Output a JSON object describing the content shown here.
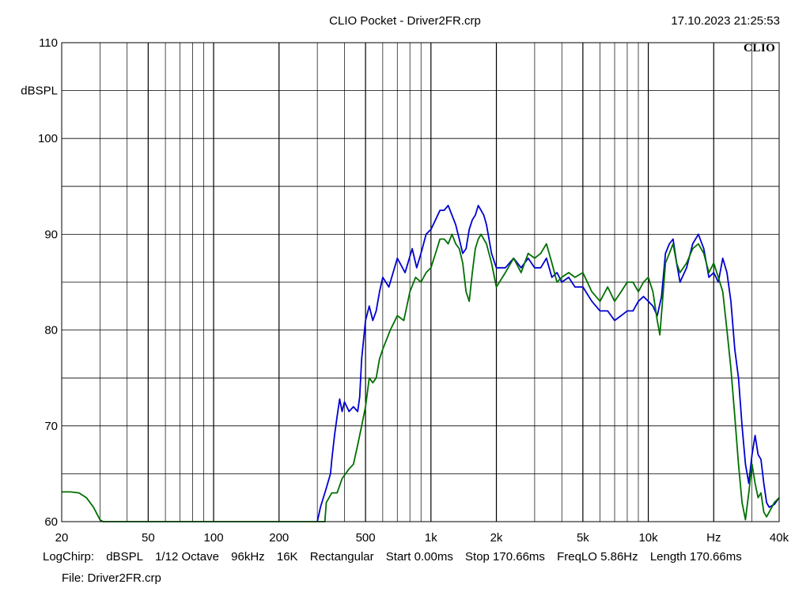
{
  "header": {
    "title": "CLIO Pocket - Driver2FR.crp",
    "timestamp": "17.10.2023 21:25:53",
    "logo": "CLIO"
  },
  "chart_data": {
    "type": "line",
    "title": "CLIO Pocket - Driver2FR.crp",
    "ylabel": "dBSPL",
    "xlabel": "Hz",
    "x_scale": "log",
    "xlim": [
      20,
      40000
    ],
    "ylim": [
      60,
      110
    ],
    "grid": true,
    "x_ticks": [
      {
        "value": 20,
        "label": "20"
      },
      {
        "value": 50,
        "label": "50"
      },
      {
        "value": 100,
        "label": "100"
      },
      {
        "value": 200,
        "label": "200"
      },
      {
        "value": 500,
        "label": "500"
      },
      {
        "value": 1000,
        "label": "1k"
      },
      {
        "value": 2000,
        "label": "2k"
      },
      {
        "value": 5000,
        "label": "5k"
      },
      {
        "value": 10000,
        "label": "10k"
      },
      {
        "value": 20000,
        "label": "Hz"
      },
      {
        "value": 40000,
        "label": "40k"
      }
    ],
    "y_ticks": [
      {
        "value": 60,
        "label": "60"
      },
      {
        "value": 70,
        "label": "70"
      },
      {
        "value": 80,
        "label": "80"
      },
      {
        "value": 90,
        "label": "90"
      },
      {
        "value": 100,
        "label": "100"
      },
      {
        "value": 105,
        "label": "dBSPL"
      },
      {
        "value": 110,
        "label": "110"
      }
    ],
    "series": [
      {
        "color": "#0000d0",
        "points": [
          [
            300,
            60
          ],
          [
            310,
            61.5
          ],
          [
            330,
            63.5
          ],
          [
            345,
            65
          ],
          [
            350,
            66.5
          ],
          [
            360,
            69
          ],
          [
            370,
            71
          ],
          [
            380,
            72.8
          ],
          [
            390,
            71.5
          ],
          [
            400,
            72.5
          ],
          [
            420,
            71.5
          ],
          [
            440,
            72
          ],
          [
            460,
            71.5
          ],
          [
            470,
            73
          ],
          [
            480,
            77
          ],
          [
            500,
            81
          ],
          [
            520,
            82.5
          ],
          [
            540,
            81
          ],
          [
            560,
            82
          ],
          [
            580,
            84
          ],
          [
            600,
            85.5
          ],
          [
            640,
            84.5
          ],
          [
            700,
            87.5
          ],
          [
            760,
            86
          ],
          [
            820,
            88.5
          ],
          [
            860,
            86.5
          ],
          [
            900,
            88
          ],
          [
            950,
            90
          ],
          [
            1000,
            90.5
          ],
          [
            1050,
            91.5
          ],
          [
            1100,
            92.5
          ],
          [
            1150,
            92.5
          ],
          [
            1200,
            93
          ],
          [
            1250,
            92
          ],
          [
            1300,
            91
          ],
          [
            1350,
            89.5
          ],
          [
            1400,
            88
          ],
          [
            1450,
            88.5
          ],
          [
            1500,
            90.5
          ],
          [
            1550,
            91.5
          ],
          [
            1600,
            92
          ],
          [
            1650,
            93
          ],
          [
            1700,
            92.5
          ],
          [
            1750,
            92
          ],
          [
            1800,
            91
          ],
          [
            1900,
            88
          ],
          [
            2000,
            86.5
          ],
          [
            2200,
            86.5
          ],
          [
            2400,
            87.5
          ],
          [
            2600,
            86.5
          ],
          [
            2800,
            87.5
          ],
          [
            3000,
            86.5
          ],
          [
            3200,
            86.5
          ],
          [
            3400,
            87.5
          ],
          [
            3600,
            85.5
          ],
          [
            3800,
            86
          ],
          [
            4000,
            85
          ],
          [
            4300,
            85.5
          ],
          [
            4600,
            84.5
          ],
          [
            5000,
            84.5
          ],
          [
            5500,
            83
          ],
          [
            6000,
            82
          ],
          [
            6500,
            82
          ],
          [
            7000,
            81
          ],
          [
            7500,
            81.5
          ],
          [
            8000,
            82
          ],
          [
            8500,
            82
          ],
          [
            9000,
            83
          ],
          [
            9500,
            83.5
          ],
          [
            10000,
            83
          ],
          [
            10500,
            82.5
          ],
          [
            11000,
            81.5
          ],
          [
            11500,
            83.5
          ],
          [
            12000,
            88
          ],
          [
            12500,
            89
          ],
          [
            13000,
            89.5
          ],
          [
            13500,
            87
          ],
          [
            14000,
            85
          ],
          [
            15000,
            86.5
          ],
          [
            16000,
            89
          ],
          [
            17000,
            90
          ],
          [
            18000,
            88.5
          ],
          [
            19000,
            85.5
          ],
          [
            20000,
            86
          ],
          [
            21000,
            85
          ],
          [
            22000,
            87.5
          ],
          [
            23000,
            86
          ],
          [
            24000,
            83
          ],
          [
            25000,
            78
          ],
          [
            26000,
            75
          ],
          [
            27000,
            70
          ],
          [
            28000,
            66
          ],
          [
            29000,
            64
          ],
          [
            30000,
            67
          ],
          [
            31000,
            69
          ],
          [
            32000,
            67
          ],
          [
            33000,
            66.5
          ],
          [
            34000,
            64
          ],
          [
            35000,
            62
          ],
          [
            36000,
            61.5
          ],
          [
            38000,
            61.8
          ],
          [
            40000,
            62.5
          ]
        ]
      },
      {
        "color": "#007000",
        "points": [
          [
            20,
            63.1
          ],
          [
            22,
            63.1
          ],
          [
            24,
            63
          ],
          [
            26,
            62.5
          ],
          [
            28,
            61.5
          ],
          [
            30,
            60.2
          ],
          [
            31,
            60
          ],
          [
            325,
            60
          ],
          [
            330,
            62
          ],
          [
            350,
            63
          ],
          [
            370,
            63
          ],
          [
            390,
            64.5
          ],
          [
            420,
            65.5
          ],
          [
            440,
            66
          ],
          [
            460,
            68
          ],
          [
            480,
            70
          ],
          [
            500,
            72
          ],
          [
            520,
            75
          ],
          [
            540,
            74.5
          ],
          [
            560,
            75
          ],
          [
            580,
            77
          ],
          [
            600,
            78
          ],
          [
            650,
            80
          ],
          [
            700,
            81.5
          ],
          [
            750,
            81
          ],
          [
            800,
            84
          ],
          [
            850,
            85.5
          ],
          [
            900,
            85
          ],
          [
            950,
            86
          ],
          [
            1000,
            86.5
          ],
          [
            1050,
            88
          ],
          [
            1100,
            89.5
          ],
          [
            1150,
            89.5
          ],
          [
            1200,
            89
          ],
          [
            1250,
            90
          ],
          [
            1300,
            89
          ],
          [
            1350,
            88.5
          ],
          [
            1400,
            87
          ],
          [
            1450,
            84
          ],
          [
            1500,
            83
          ],
          [
            1550,
            86
          ],
          [
            1600,
            88.5
          ],
          [
            1650,
            89.5
          ],
          [
            1700,
            90
          ],
          [
            1800,
            89
          ],
          [
            1900,
            87
          ],
          [
            2000,
            84.5
          ],
          [
            2200,
            86
          ],
          [
            2400,
            87.5
          ],
          [
            2600,
            86
          ],
          [
            2800,
            88
          ],
          [
            3000,
            87.5
          ],
          [
            3200,
            88
          ],
          [
            3400,
            89
          ],
          [
            3600,
            87
          ],
          [
            3800,
            85
          ],
          [
            4000,
            85.5
          ],
          [
            4300,
            86
          ],
          [
            4600,
            85.5
          ],
          [
            5000,
            86
          ],
          [
            5500,
            84
          ],
          [
            6000,
            83
          ],
          [
            6500,
            84.5
          ],
          [
            7000,
            83
          ],
          [
            7500,
            84
          ],
          [
            8000,
            85
          ],
          [
            8500,
            85
          ],
          [
            9000,
            84
          ],
          [
            9500,
            85
          ],
          [
            10000,
            85.5
          ],
          [
            10500,
            84
          ],
          [
            11000,
            81
          ],
          [
            11300,
            79.5
          ],
          [
            12000,
            87
          ],
          [
            12500,
            88
          ],
          [
            13000,
            89
          ],
          [
            13500,
            87
          ],
          [
            14000,
            86
          ],
          [
            15000,
            87
          ],
          [
            16000,
            88.5
          ],
          [
            17000,
            89
          ],
          [
            18000,
            88
          ],
          [
            19000,
            86
          ],
          [
            20000,
            87
          ],
          [
            21000,
            85.5
          ],
          [
            22000,
            84
          ],
          [
            23000,
            80
          ],
          [
            24000,
            76
          ],
          [
            25000,
            71
          ],
          [
            26000,
            66
          ],
          [
            27000,
            62
          ],
          [
            28000,
            60.2
          ],
          [
            29000,
            63
          ],
          [
            30000,
            66
          ],
          [
            31000,
            64
          ],
          [
            32000,
            62.5
          ],
          [
            33000,
            63
          ],
          [
            34000,
            61
          ],
          [
            35000,
            60.5
          ],
          [
            36000,
            61
          ],
          [
            38000,
            62
          ],
          [
            40000,
            62.5
          ]
        ]
      }
    ]
  },
  "params": {
    "mode": "LogChirp:",
    "units": "dBSPL",
    "smoothing": "1/12 Octave",
    "rate": "96kHz",
    "size": "16K",
    "window": "Rectangular",
    "start": "Start 0.00ms",
    "stop": "Stop 170.66ms",
    "freqlo": "FreqLO 5.86Hz",
    "length": "Length 170.66ms"
  },
  "file": "File: Driver2FR.crp"
}
